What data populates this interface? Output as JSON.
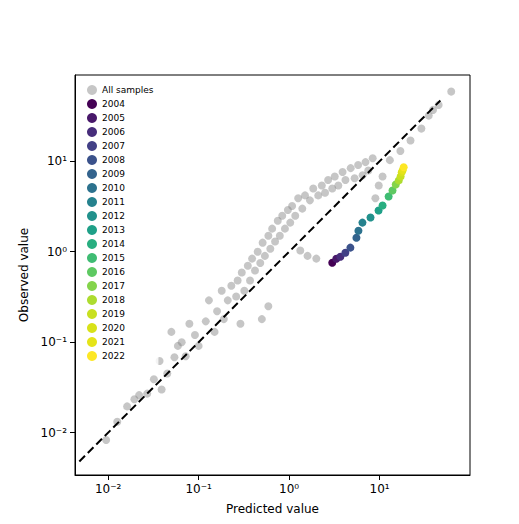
{
  "chart_data": {
    "type": "scatter",
    "log": true,
    "grid": false,
    "legend": "upper left",
    "xlabel": "Predicted value",
    "ylabel": "Observed value",
    "xlim": [
      0.0043,
      100
    ],
    "ylim": [
      0.0034,
      90
    ],
    "xticks": [
      {
        "value": 0.01,
        "label": "10⁻²"
      },
      {
        "value": 0.1,
        "label": "10⁻¹"
      },
      {
        "value": 1,
        "label": "10⁰"
      },
      {
        "value": 10,
        "label": "10¹"
      }
    ],
    "yticks": [
      {
        "value": 0.01,
        "label": "10⁻²"
      },
      {
        "value": 0.1,
        "label": "10⁻¹"
      },
      {
        "value": 1,
        "label": "10⁰"
      },
      {
        "value": 10,
        "label": "10¹"
      }
    ],
    "series": [
      {
        "type": "line",
        "line_style": "dashed",
        "color": "#000000",
        "x": [
          0.0048,
          47
        ],
        "values": [
          0.0048,
          47
        ]
      },
      {
        "name": "All samples",
        "color": "#808080",
        "marker": "circle",
        "x": [
          0.0095,
          0.0126,
          0.0162,
          0.0195,
          0.022,
          0.027,
          0.032,
          0.037,
          0.039,
          0.045,
          0.05,
          0.054,
          0.059,
          0.065,
          0.072,
          0.079,
          0.091,
          0.1,
          0.12,
          0.13,
          0.15,
          0.16,
          0.18,
          0.19,
          0.21,
          0.23,
          0.26,
          0.27,
          0.3,
          0.32,
          0.35,
          0.37,
          0.39,
          0.42,
          0.45,
          0.48,
          0.51,
          0.54,
          0.59,
          0.62,
          0.65,
          0.7,
          0.75,
          0.79,
          0.84,
          0.9,
          0.97,
          1.03,
          1.08,
          1.17,
          1.26,
          1.33,
          1.4,
          1.5,
          1.6,
          1.7,
          1.85,
          2.0,
          2.1,
          2.3,
          2.5,
          2.7,
          3.0,
          3.2,
          3.5,
          3.9,
          4.2,
          4.8,
          5.3,
          5.8,
          6.5,
          7.0,
          7.5,
          8.4,
          9.0,
          9.8,
          10.8,
          13,
          17,
          22,
          29,
          35,
          39,
          45,
          62,
          0.5,
          0.59,
          0.29
        ],
        "values": [
          0.0083,
          0.0132,
          0.0195,
          0.0234,
          0.026,
          0.027,
          0.039,
          0.062,
          0.03,
          0.045,
          0.13,
          0.068,
          0.091,
          0.1,
          0.07,
          0.16,
          0.12,
          0.091,
          0.17,
          0.29,
          0.13,
          0.22,
          0.37,
          0.18,
          0.29,
          0.42,
          0.32,
          0.48,
          0.59,
          0.37,
          0.7,
          0.48,
          0.84,
          0.62,
          1.0,
          0.75,
          1.26,
          0.9,
          1.5,
          1.08,
          1.8,
          1.3,
          2.2,
          1.5,
          2.5,
          1.8,
          2.9,
          2.1,
          3.2,
          2.5,
          3.9,
          1.03,
          3.0,
          4.2,
          0.9,
          3.7,
          5.0,
          0.84,
          4.2,
          5.4,
          4.5,
          6.2,
          5.0,
          6.8,
          5.4,
          7.6,
          6.2,
          8.4,
          6.5,
          9.1,
          7.0,
          9.8,
          7.9,
          10.8,
          3.9,
          5.4,
          6.8,
          10.3,
          13,
          17,
          23,
          32,
          37,
          42,
          59,
          0.18,
          0.25,
          0.16
        ]
      },
      {
        "name": "2004",
        "color": "#440154",
        "marker": "circle",
        "x": [
          3.0
        ],
        "values": [
          0.755
        ]
      },
      {
        "name": "2005",
        "color": "#48186a",
        "marker": "circle",
        "x": [
          3.33
        ],
        "values": [
          0.836
        ]
      },
      {
        "name": "2006",
        "color": "#472d7b",
        "marker": "circle",
        "x": [
          3.69
        ],
        "values": [
          0.88
        ]
      },
      {
        "name": "2007",
        "color": "#424086",
        "marker": "circle",
        "x": [
          4.19
        ],
        "values": [
          0.975
        ]
      },
      {
        "name": "2008",
        "color": "#3b528b",
        "marker": "circle",
        "x": [
          4.76
        ],
        "values": [
          1.11
        ]
      },
      {
        "name": "2009",
        "color": "#33638d",
        "marker": "circle",
        "x": [
          5.55
        ],
        "values": [
          1.43
        ]
      },
      {
        "name": "2010",
        "color": "#2c728e",
        "marker": "circle",
        "x": [
          5.84
        ],
        "values": [
          1.71
        ]
      },
      {
        "name": "2011",
        "color": "#26828e",
        "marker": "circle",
        "x": [
          6.47
        ],
        "values": [
          2.1
        ]
      },
      {
        "name": "2012",
        "color": "#21918c",
        "marker": "circle",
        "x": [
          7.94
        ],
        "values": [
          2.39
        ]
      },
      {
        "name": "2013",
        "color": "#1fa088",
        "marker": "circle",
        "x": [
          9.75
        ],
        "values": [
          2.86
        ]
      },
      {
        "name": "2014",
        "color": "#28ae80",
        "marker": "circle",
        "x": [
          10.8
        ],
        "values": [
          3.25
        ]
      },
      {
        "name": "2015",
        "color": "#3fbc73",
        "marker": "circle",
        "x": [
          12.6
        ],
        "values": [
          4.08
        ]
      },
      {
        "name": "2016",
        "color": "#5ec962",
        "marker": "circle",
        "x": [
          13.9
        ],
        "values": [
          4.76
        ]
      },
      {
        "name": "2017",
        "color": "#84d44b",
        "marker": "circle",
        "x": [
          15.1
        ],
        "values": [
          5.55
        ]
      },
      {
        "name": "2018",
        "color": "#addc30",
        "marker": "circle",
        "x": [
          16.3
        ],
        "values": [
          6.15
        ]
      },
      {
        "name": "2019",
        "color": "#c8e020",
        "marker": "circle",
        "x": [
          17.1
        ],
        "values": [
          6.81
        ]
      },
      {
        "name": "2020",
        "color": "#d8e219",
        "marker": "circle",
        "x": [
          17.6
        ],
        "values": [
          7.55
        ]
      },
      {
        "name": "2021",
        "color": "#e5e419",
        "marker": "circle",
        "x": [
          18.0
        ],
        "values": [
          7.94
        ]
      },
      {
        "name": "2022",
        "color": "#fde725",
        "marker": "circle",
        "x": [
          18.5
        ],
        "values": [
          8.58
        ]
      }
    ]
  }
}
